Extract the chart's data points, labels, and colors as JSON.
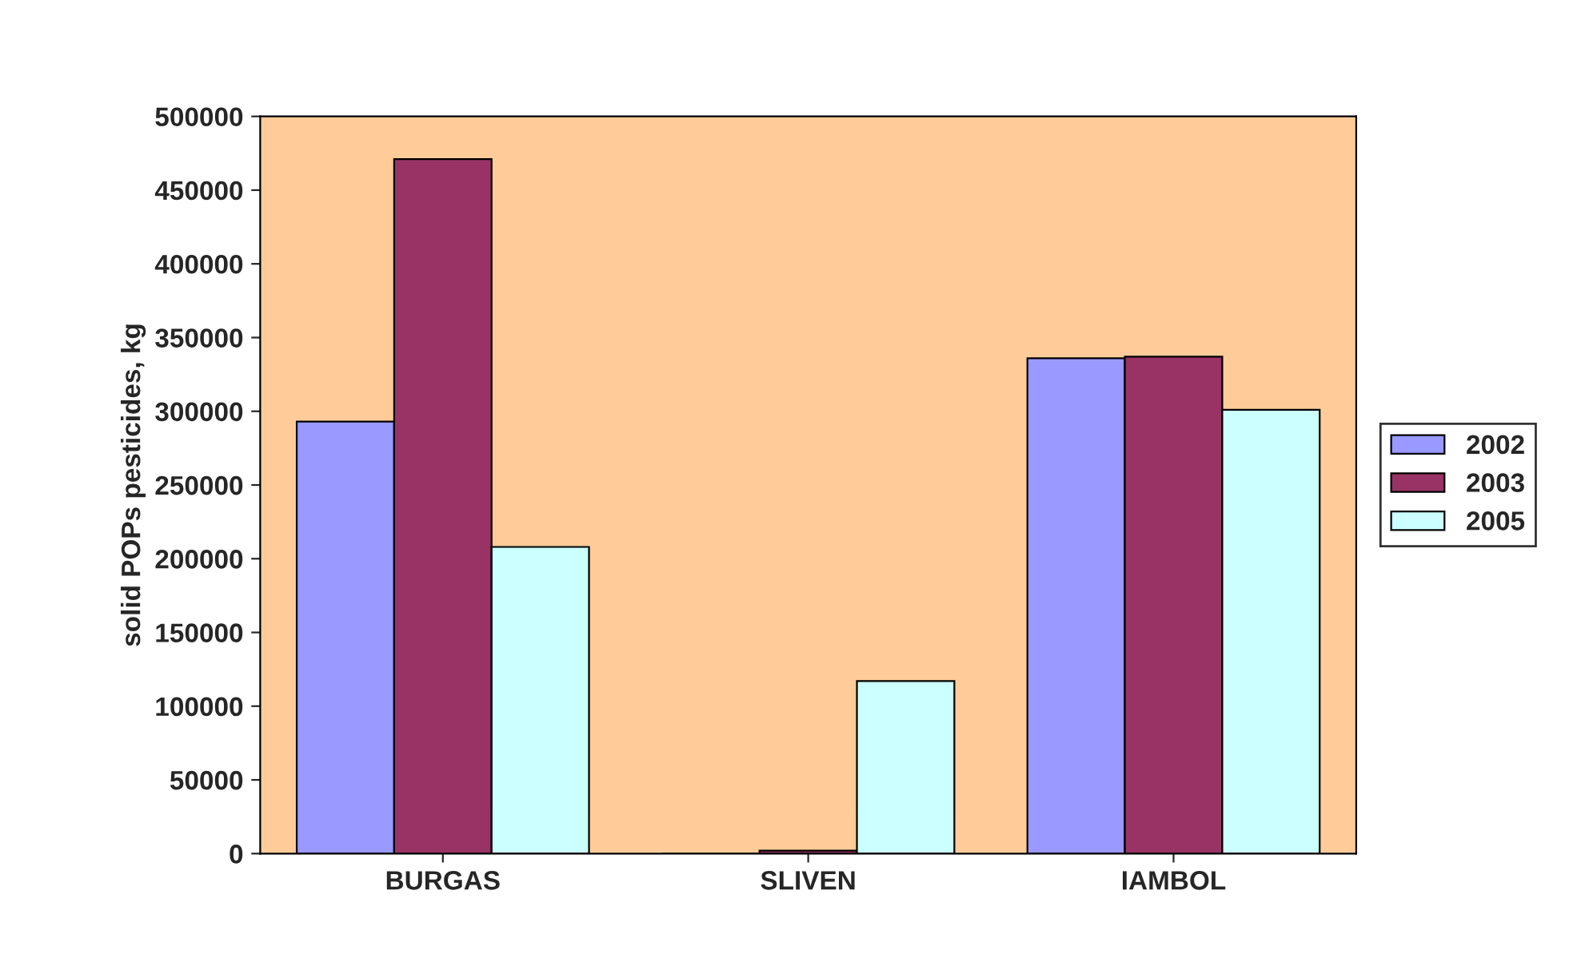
{
  "chart_data": {
    "type": "bar",
    "ylabel": "solid POPs pesticides, kg",
    "categories": [
      "BURGAS",
      "SLIVEN",
      "IAMBOL"
    ],
    "series": [
      {
        "name": "2002",
        "color": "#9999ff",
        "values": [
          293000,
          0,
          336000
        ]
      },
      {
        "name": "2003",
        "color": "#993366",
        "values": [
          471000,
          2000,
          337000
        ]
      },
      {
        "name": "2005",
        "color": "#ccffff",
        "values": [
          208000,
          117000,
          301000
        ]
      }
    ],
    "ylim": [
      0,
      500000
    ],
    "yticks": [
      0,
      50000,
      100000,
      150000,
      200000,
      250000,
      300000,
      350000,
      400000,
      450000,
      500000
    ],
    "grid": false,
    "legend": "right"
  }
}
